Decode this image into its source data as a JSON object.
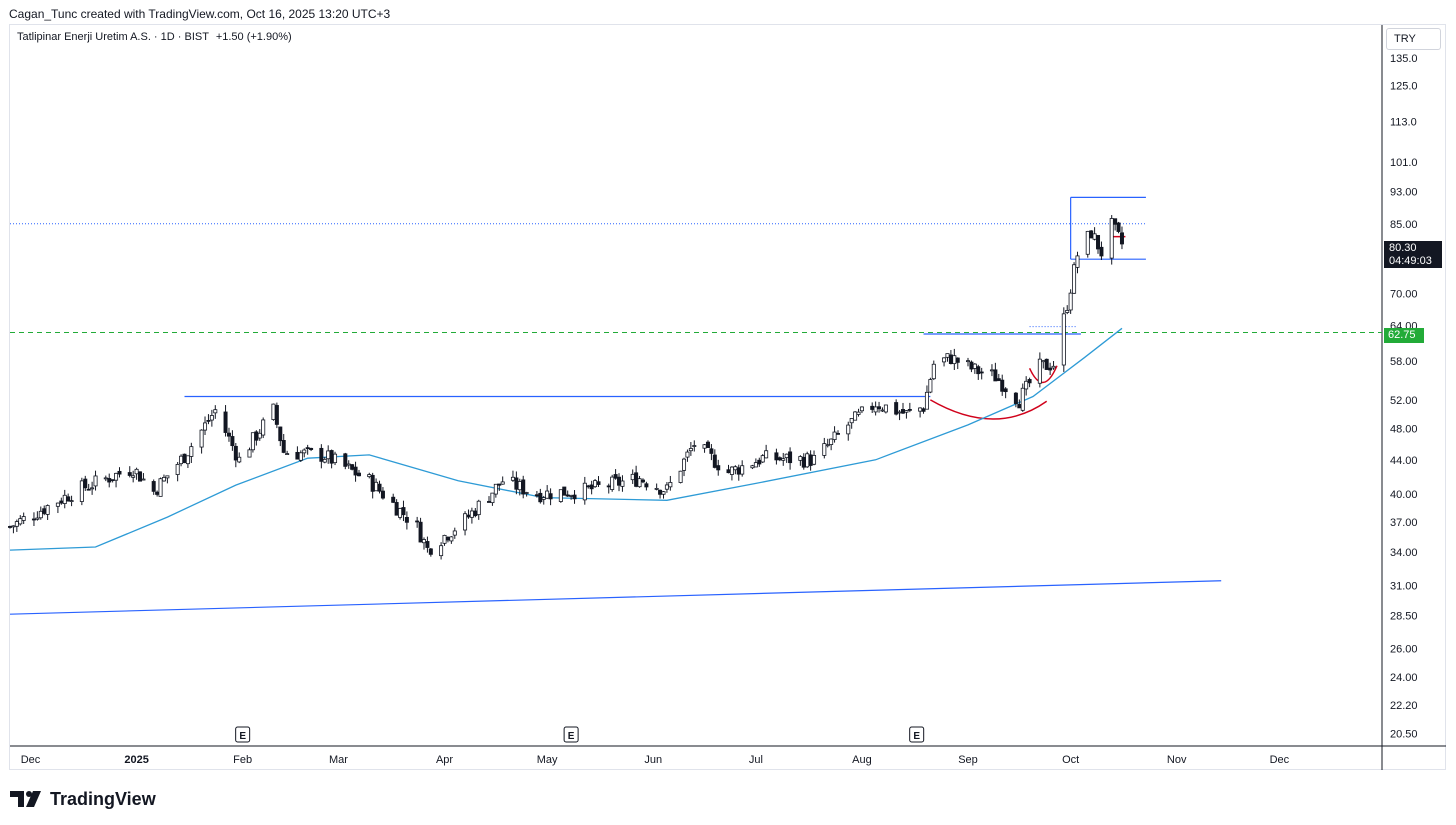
{
  "header": {
    "attribution": "Cagan_Tunc created with TradingView.com, Oct 16, 2025 13:20 UTC+3"
  },
  "legend": {
    "symbol_text": "Tatlipinar Enerji Uretim A.S. · 1D · BIST",
    "change_text": "+1.50 (+1.90%)"
  },
  "currency_button": "TRY",
  "last_price": {
    "price": "80.30",
    "countdown": "04:49:03"
  },
  "level_badge": "62.75",
  "footer": {
    "brand": "TradingView"
  },
  "colors": {
    "candle_border": "#131722",
    "candle_up_fill": "#ffffff",
    "candle_down_fill": "#131722",
    "moving_average": "#2e9bd6",
    "trendline": "#2962ff",
    "support_level": "#22ab38",
    "cup_arc": "#d0021b"
  },
  "chart_data": {
    "type": "candlestick",
    "symbol": "Tatlipinar Enerji Uretim A.S.",
    "interval": "1D",
    "exchange": "BIST",
    "currency": "TRY",
    "y_scale": "log",
    "ylim": [
      19.8,
      148
    ],
    "x_range": [
      "2024-11-25",
      "2025-12-31"
    ],
    "y_ticks": [
      "135.0",
      "125.0",
      "113.0",
      "101.0",
      "93.00",
      "85.00",
      "70.00",
      "64.00",
      "58.00",
      "52.00",
      "48.00",
      "44.00",
      "40.00",
      "37.00",
      "34.00",
      "31.00",
      "28.50",
      "26.00",
      "24.00",
      "22.20",
      "20.50"
    ],
    "x_labels": [
      {
        "label": "Dec",
        "date": "2024-12-01"
      },
      {
        "label": "2025",
        "date": "2025-01-01"
      },
      {
        "label": "Feb",
        "date": "2025-02-01"
      },
      {
        "label": "Mar",
        "date": "2025-03-01"
      },
      {
        "label": "Apr",
        "date": "2025-04-01"
      },
      {
        "label": "May",
        "date": "2025-05-01"
      },
      {
        "label": "Jun",
        "date": "2025-06-01"
      },
      {
        "label": "Jul",
        "date": "2025-07-01"
      },
      {
        "label": "Aug",
        "date": "2025-08-01"
      },
      {
        "label": "Sep",
        "date": "2025-09-01"
      },
      {
        "label": "Oct",
        "date": "2025-10-01"
      },
      {
        "label": "Nov",
        "date": "2025-11-01"
      },
      {
        "label": "Dec",
        "date": "2025-12-01"
      }
    ],
    "earnings_markers": [
      {
        "label": "E",
        "date": "2025-02-01"
      },
      {
        "label": "E",
        "date": "2025-05-08"
      },
      {
        "label": "E",
        "date": "2025-08-17"
      }
    ],
    "anchors": [
      {
        "date": "2024-11-25",
        "close": 36.5
      },
      {
        "date": "2024-12-15",
        "close": 40.5
      },
      {
        "date": "2024-12-31",
        "close": 43.0
      },
      {
        "date": "2025-01-06",
        "close": 40.3
      },
      {
        "date": "2025-01-15",
        "close": 44.5
      },
      {
        "date": "2025-01-24",
        "close": 50.5
      },
      {
        "date": "2025-01-31",
        "close": 44.0
      },
      {
        "date": "2025-02-10",
        "close": 50.5
      },
      {
        "date": "2025-02-13",
        "close": 45.0
      },
      {
        "date": "2025-02-25",
        "close": 44.5
      },
      {
        "date": "2025-03-10",
        "close": 41.5
      },
      {
        "date": "2025-03-24",
        "close": 36.5
      },
      {
        "date": "2025-03-27",
        "close": 34.3
      },
      {
        "date": "2025-04-07",
        "close": 37.2
      },
      {
        "date": "2025-04-18",
        "close": 41.5
      },
      {
        "date": "2025-04-28",
        "close": 40.0
      },
      {
        "date": "2025-05-12",
        "close": 40.4
      },
      {
        "date": "2025-05-28",
        "close": 41.8
      },
      {
        "date": "2025-06-05",
        "close": 40.4
      },
      {
        "date": "2025-06-13",
        "close": 46.0
      },
      {
        "date": "2025-06-23",
        "close": 42.5
      },
      {
        "date": "2025-07-03",
        "close": 44.2
      },
      {
        "date": "2025-07-18",
        "close": 44.0
      },
      {
        "date": "2025-07-28",
        "close": 48.5
      },
      {
        "date": "2025-08-05",
        "close": 51.5
      },
      {
        "date": "2025-08-14",
        "close": 50.0
      },
      {
        "date": "2025-08-19",
        "close": 51.0
      },
      {
        "date": "2025-08-22",
        "close": 57.5
      },
      {
        "date": "2025-08-27",
        "close": 58.5
      },
      {
        "date": "2025-09-03",
        "close": 56.5
      },
      {
        "date": "2025-09-09",
        "close": 55.5
      },
      {
        "date": "2025-09-16",
        "close": 52.0
      },
      {
        "date": "2025-09-22",
        "close": 57.0
      },
      {
        "date": "2025-09-26",
        "close": 57.5
      },
      {
        "date": "2025-09-30",
        "close": 68.0
      },
      {
        "date": "2025-10-03",
        "close": 78.0
      },
      {
        "date": "2025-10-07",
        "close": 83.0
      },
      {
        "date": "2025-10-10",
        "close": 78.5
      },
      {
        "date": "2025-10-13",
        "close": 84.5
      },
      {
        "date": "2025-10-16",
        "close": 80.3
      }
    ],
    "moving_average_points": [
      {
        "date": "2024-11-25",
        "value": 34.2
      },
      {
        "date": "2024-12-20",
        "value": 34.5
      },
      {
        "date": "2025-01-10",
        "value": 37.5
      },
      {
        "date": "2025-01-30",
        "value": 41.0
      },
      {
        "date": "2025-02-20",
        "value": 44.2
      },
      {
        "date": "2025-03-10",
        "value": 44.6
      },
      {
        "date": "2025-04-05",
        "value": 41.5
      },
      {
        "date": "2025-04-30",
        "value": 39.6
      },
      {
        "date": "2025-06-05",
        "value": 39.3
      },
      {
        "date": "2025-07-01",
        "value": 41.2
      },
      {
        "date": "2025-08-05",
        "value": 44.0
      },
      {
        "date": "2025-09-01",
        "value": 48.5
      },
      {
        "date": "2025-09-20",
        "value": 52.5
      },
      {
        "date": "2025-10-05",
        "value": 58.5
      },
      {
        "date": "2025-10-16",
        "value": 63.5
      }
    ],
    "annotations": {
      "long_trendline": {
        "from": {
          "date": "2024-11-25",
          "value": 28.6
        },
        "to": {
          "date": "2025-11-14",
          "value": 31.4
        }
      },
      "resistance_line": {
        "from": {
          "date": "2025-01-15",
          "value": 52.5
        },
        "to": {
          "date": "2025-08-21",
          "value": 52.5
        }
      },
      "neckline": {
        "from": {
          "date": "2025-08-19",
          "value": 62.5
        },
        "to": {
          "date": "2025-10-04",
          "value": 62.5
        }
      },
      "dotted_resistance": {
        "from": {
          "date": "2024-11-25",
          "value": 85.0
        },
        "to": {
          "date": "2025-10-23",
          "value": 85.0
        }
      },
      "dotted_resistance_short": {
        "from": {
          "date": "2025-09-19",
          "value": 63.8
        },
        "to": {
          "date": "2025-10-03",
          "value": 63.8
        }
      },
      "support_level": {
        "value": 62.75
      },
      "range_top": {
        "from": {
          "date": "2025-10-01",
          "value": 91.5
        },
        "to": {
          "date": "2025-10-23",
          "value": 91.5
        }
      },
      "range_bottom": {
        "from": {
          "date": "2025-10-01",
          "value": 77.0
        },
        "to": {
          "date": "2025-10-23",
          "value": 77.0
        }
      },
      "range_left_edge": {
        "date": "2025-10-01"
      },
      "current_price_mark": {
        "from": {
          "date": "2025-10-13",
          "value": 82.0
        },
        "to": {
          "date": "2025-10-17",
          "value": 82.0
        }
      },
      "cup_arc_large": {
        "from": {
          "date": "2025-08-21",
          "value": 52.0
        },
        "bottom": {
          "date": "2025-09-08",
          "value": 49.3
        },
        "to": {
          "date": "2025-09-24",
          "value": 51.8
        }
      },
      "cup_arc_small": {
        "from": {
          "date": "2025-09-19",
          "value": 56.8
        },
        "bottom": {
          "date": "2025-09-23",
          "value": 54.6
        },
        "to": {
          "date": "2025-09-27",
          "value": 57.2
        }
      }
    }
  }
}
